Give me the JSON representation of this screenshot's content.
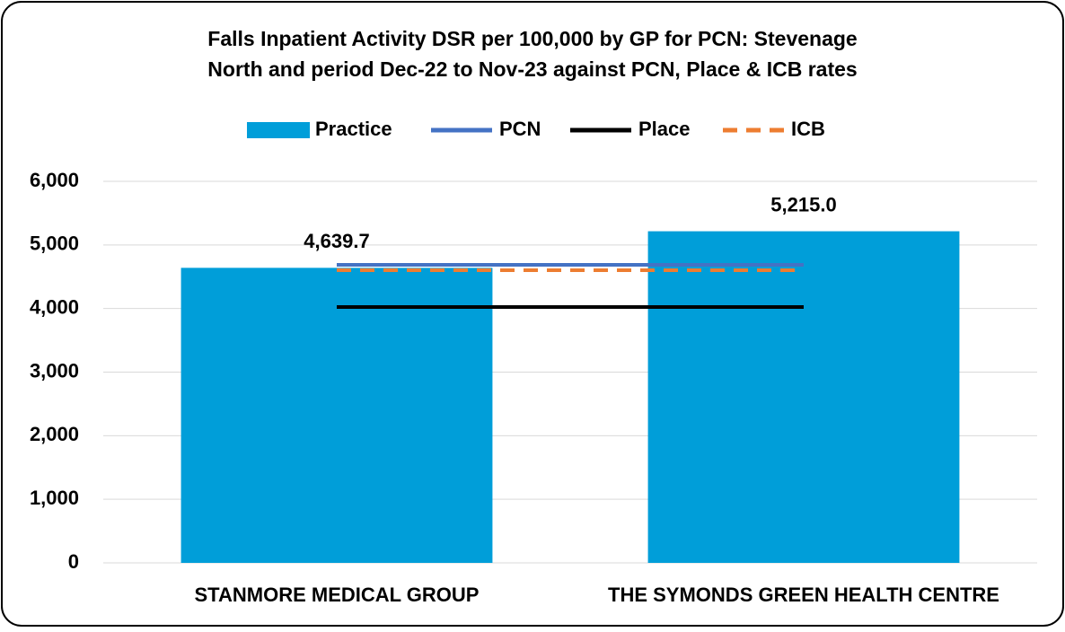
{
  "chart_data": {
    "type": "bar",
    "title": [
      "Falls Inpatient Activity DSR per 100,000 by GP for PCN: Stevenage",
      "North and period Dec-22 to Nov-23 against PCN, Place & ICB rates"
    ],
    "categories": [
      "STANMORE MEDICAL GROUP",
      "THE SYMONDS GREEN HEALTH CENTRE"
    ],
    "series": [
      {
        "name": "Practice",
        "type": "bar",
        "color": "#009ed9",
        "values": [
          4639.7,
          5215.0
        ],
        "value_labels": [
          "4,639.7",
          "5,215.0"
        ]
      },
      {
        "name": "PCN",
        "type": "line",
        "color": "#4472c4",
        "values": [
          4687,
          4687
        ]
      },
      {
        "name": "Place",
        "type": "line",
        "color": "#000000",
        "values": [
          4024,
          4024
        ]
      },
      {
        "name": "ICB",
        "type": "line",
        "color": "#ed7d31",
        "dashed": true,
        "values": [
          4603,
          4603
        ]
      }
    ],
    "ylim": [
      0,
      6000
    ],
    "yticks": [
      0,
      {
        "value": 1000,
        "label": "1,000"
      },
      {
        "value": 2000,
        "label": "2,000"
      },
      {
        "value": 3000,
        "label": "3,000"
      },
      {
        "value": 4000,
        "label": "4,000"
      },
      {
        "value": 5000,
        "label": "5,000"
      },
      {
        "value": 6000,
        "label": "6,000"
      }
    ],
    "grid": true,
    "legend": "top"
  }
}
